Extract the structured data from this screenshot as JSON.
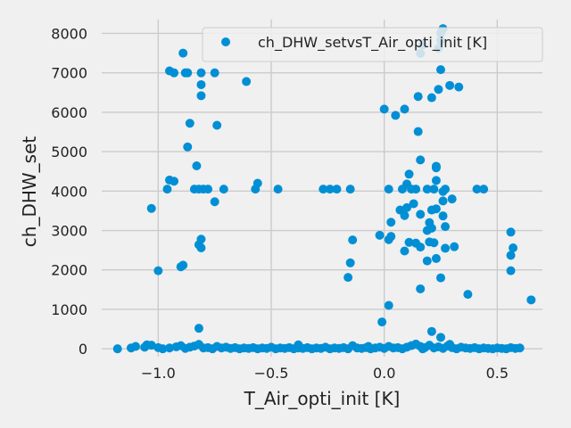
{
  "chart_data": {
    "type": "scatter",
    "xlabel": "T_Air_opti_init [K]",
    "ylabel": "ch_DHW_set",
    "xlim": [
      -1.25,
      0.7
    ],
    "ylim": [
      -200,
      8350
    ],
    "xticks": [
      -1.0,
      -0.5,
      0.0,
      0.5
    ],
    "xtick_labels": [
      "−1.0",
      "−0.5",
      "0.0",
      "0.5"
    ],
    "yticks": [
      0,
      1000,
      2000,
      3000,
      4000,
      5000,
      6000,
      7000,
      8000
    ],
    "ytick_labels": [
      "0",
      "1000",
      "2000",
      "3000",
      "4000",
      "5000",
      "6000",
      "7000",
      "8000"
    ],
    "grid": true,
    "legend_position": "top-right",
    "series": [
      {
        "name": "ch_DHW_setvsT_Air_opti_init [K]",
        "color": "#008fd5",
        "points": [
          [
            -0.89,
            7500
          ],
          [
            -0.95,
            7050
          ],
          [
            -0.93,
            7000
          ],
          [
            -0.88,
            7000
          ],
          [
            -0.87,
            7000
          ],
          [
            -0.81,
            7000
          ],
          [
            -0.75,
            7000
          ],
          [
            -0.81,
            6700
          ],
          [
            -0.81,
            6420
          ],
          [
            -0.61,
            6780
          ],
          [
            -0.86,
            5720
          ],
          [
            -0.74,
            5670
          ],
          [
            -0.87,
            5120
          ],
          [
            -0.83,
            4640
          ],
          [
            -0.95,
            4280
          ],
          [
            -0.93,
            4250
          ],
          [
            -0.96,
            4050
          ],
          [
            -0.84,
            4050
          ],
          [
            -0.82,
            4050
          ],
          [
            -0.8,
            4050
          ],
          [
            -0.78,
            4050
          ],
          [
            -0.71,
            4050
          ],
          [
            -0.57,
            4050
          ],
          [
            -0.56,
            4200
          ],
          [
            -0.47,
            4050
          ],
          [
            -0.75,
            3730
          ],
          [
            -1.03,
            3560
          ],
          [
            -0.81,
            2780
          ],
          [
            -0.82,
            2640
          ],
          [
            -0.81,
            2560
          ],
          [
            -0.89,
            2120
          ],
          [
            -0.9,
            2080
          ],
          [
            -1.0,
            1980
          ],
          [
            -0.82,
            520
          ],
          [
            -0.27,
            4050
          ],
          [
            -0.24,
            4050
          ],
          [
            -0.21,
            4050
          ],
          [
            -0.15,
            4050
          ],
          [
            -0.14,
            2760
          ],
          [
            -0.15,
            2180
          ],
          [
            -0.16,
            1810
          ],
          [
            0.0,
            6080
          ],
          [
            0.02,
            4050
          ],
          [
            0.03,
            3210
          ],
          [
            0.03,
            2850
          ],
          [
            0.02,
            2770
          ],
          [
            -0.02,
            2880
          ],
          [
            0.02,
            1100
          ],
          [
            -0.01,
            680
          ],
          [
            0.05,
            5920
          ],
          [
            0.09,
            6080
          ],
          [
            0.07,
            3520
          ],
          [
            0.08,
            4050
          ],
          [
            0.09,
            3380
          ],
          [
            0.1,
            3580
          ],
          [
            0.1,
            4180
          ],
          [
            0.11,
            4430
          ],
          [
            0.12,
            4050
          ],
          [
            0.14,
            4050
          ],
          [
            0.11,
            2700
          ],
          [
            0.09,
            2480
          ],
          [
            0.14,
            2680
          ],
          [
            0.13,
            3680
          ],
          [
            0.15,
            5510
          ],
          [
            0.16,
            4790
          ],
          [
            0.16,
            3410
          ],
          [
            0.16,
            2580
          ],
          [
            0.15,
            6400
          ],
          [
            0.16,
            1520
          ],
          [
            0.16,
            7490
          ],
          [
            0.17,
            7710
          ],
          [
            0.19,
            4050
          ],
          [
            0.19,
            3000
          ],
          [
            0.19,
            2230
          ],
          [
            0.2,
            3200
          ],
          [
            0.2,
            2710
          ],
          [
            0.21,
            3520
          ],
          [
            0.21,
            3060
          ],
          [
            0.21,
            6370
          ],
          [
            0.22,
            2690
          ],
          [
            0.22,
            4050
          ],
          [
            0.23,
            4630
          ],
          [
            0.23,
            4590
          ],
          [
            0.23,
            4270
          ],
          [
            0.23,
            3550
          ],
          [
            0.23,
            2290
          ],
          [
            0.24,
            7620
          ],
          [
            0.24,
            6580
          ],
          [
            0.25,
            7080
          ],
          [
            0.25,
            7820
          ],
          [
            0.25,
            8010
          ],
          [
            0.26,
            8120
          ],
          [
            0.26,
            3990
          ],
          [
            0.26,
            3750
          ],
          [
            0.26,
            3370
          ],
          [
            0.27,
            3100
          ],
          [
            0.27,
            2550
          ],
          [
            0.27,
            4050
          ],
          [
            0.25,
            1800
          ],
          [
            0.21,
            440
          ],
          [
            0.25,
            290
          ],
          [
            0.29,
            6680
          ],
          [
            0.3,
            3800
          ],
          [
            0.31,
            2590
          ],
          [
            0.33,
            6640
          ],
          [
            0.37,
            1380
          ],
          [
            0.41,
            4050
          ],
          [
            0.44,
            4050
          ],
          [
            0.56,
            2960
          ],
          [
            0.57,
            2560
          ],
          [
            0.56,
            2370
          ],
          [
            0.56,
            1980
          ],
          [
            0.65,
            1240
          ],
          [
            -1.18,
            0
          ],
          [
            -1.12,
            20
          ],
          [
            -1.1,
            60
          ],
          [
            -1.06,
            40
          ],
          [
            -1.05,
            100
          ],
          [
            -1.03,
            90
          ],
          [
            -1.0,
            30
          ],
          [
            -0.98,
            0
          ],
          [
            -0.95,
            20
          ],
          [
            -0.92,
            50
          ],
          [
            -0.9,
            80
          ],
          [
            -0.88,
            10
          ],
          [
            -0.86,
            40
          ],
          [
            -0.84,
            70
          ],
          [
            -0.82,
            110
          ],
          [
            -0.8,
            20
          ],
          [
            -0.78,
            30
          ],
          [
            -0.76,
            0
          ],
          [
            -0.74,
            60
          ],
          [
            -0.72,
            20
          ],
          [
            -0.7,
            40
          ],
          [
            -0.68,
            10
          ],
          [
            -0.66,
            30
          ],
          [
            -0.64,
            0
          ],
          [
            -0.62,
            20
          ],
          [
            -0.6,
            10
          ],
          [
            -0.58,
            30
          ],
          [
            -0.56,
            0
          ],
          [
            -0.54,
            20
          ],
          [
            -0.52,
            10
          ],
          [
            -0.5,
            40
          ],
          [
            -0.48,
            0
          ],
          [
            -0.46,
            20
          ],
          [
            -0.44,
            10
          ],
          [
            -0.42,
            30
          ],
          [
            -0.4,
            0
          ],
          [
            -0.38,
            20
          ],
          [
            -0.36,
            10
          ],
          [
            -0.38,
            100
          ],
          [
            -0.34,
            30
          ],
          [
            -0.32,
            0
          ],
          [
            -0.3,
            20
          ],
          [
            -0.28,
            10
          ],
          [
            -0.26,
            40
          ],
          [
            -0.24,
            0
          ],
          [
            -0.22,
            20
          ],
          [
            -0.2,
            10
          ],
          [
            -0.18,
            30
          ],
          [
            -0.16,
            0
          ],
          [
            -0.14,
            80
          ],
          [
            -0.12,
            20
          ],
          [
            -0.1,
            10
          ],
          [
            -0.08,
            30
          ],
          [
            -0.06,
            0
          ],
          [
            -0.04,
            20
          ],
          [
            -0.02,
            40
          ],
          [
            0.0,
            10
          ],
          [
            0.02,
            60
          ],
          [
            0.04,
            20
          ],
          [
            0.06,
            30
          ],
          [
            0.08,
            0
          ],
          [
            0.1,
            40
          ],
          [
            0.12,
            80
          ],
          [
            0.14,
            120
          ],
          [
            0.16,
            60
          ],
          [
            0.18,
            30
          ],
          [
            0.2,
            90
          ],
          [
            0.22,
            20
          ],
          [
            0.24,
            50
          ],
          [
            0.26,
            10
          ],
          [
            0.28,
            70
          ],
          [
            0.3,
            30
          ],
          [
            0.32,
            0
          ],
          [
            0.34,
            40
          ],
          [
            0.36,
            20
          ],
          [
            0.38,
            10
          ],
          [
            0.4,
            30
          ],
          [
            0.42,
            0
          ],
          [
            0.44,
            20
          ],
          [
            0.46,
            10
          ],
          [
            0.48,
            0
          ],
          [
            0.5,
            20
          ],
          [
            0.52,
            10
          ],
          [
            0.54,
            0
          ],
          [
            0.56,
            30
          ],
          [
            0.58,
            10
          ],
          [
            0.6,
            20
          ],
          [
            -0.07,
            60
          ],
          [
            0.17,
            0
          ],
          [
            0.29,
            110
          ]
        ]
      }
    ]
  }
}
